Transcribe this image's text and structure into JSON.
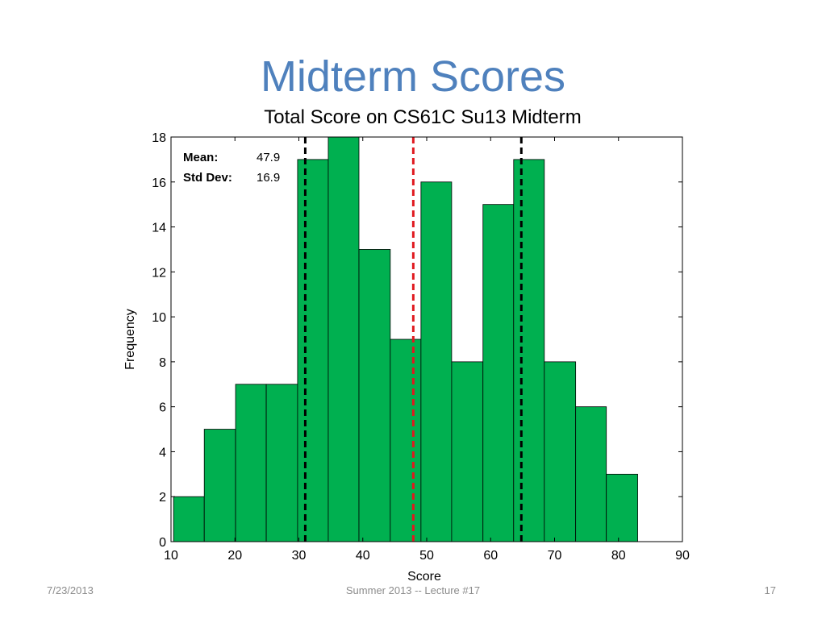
{
  "slide": {
    "title": "Midterm Scores",
    "footer_date": "7/23/2013",
    "footer_center": "Summer 2013 -- Lecture #17",
    "footer_page": "17"
  },
  "colors": {
    "title": "#4f81bd",
    "bar_fill": "#00b050",
    "bar_edge": "#000000",
    "mean_line": "#e0191f",
    "sd_lines": "#000000"
  },
  "chart_data": {
    "type": "bar",
    "title": "Total Score on CS61C Su13 Midterm",
    "xlabel": "Score",
    "ylabel": "Frequency",
    "xlim": [
      10,
      90
    ],
    "ylim": [
      0,
      18
    ],
    "xticks": [
      10,
      20,
      30,
      40,
      50,
      60,
      70,
      80,
      90
    ],
    "yticks": [
      0,
      2,
      4,
      6,
      8,
      10,
      12,
      14,
      16,
      18
    ],
    "bin_edges": [
      10.4,
      15.2,
      20.1,
      24.9,
      29.8,
      34.6,
      39.4,
      44.3,
      49.1,
      53.9,
      58.8,
      63.6,
      68.4,
      73.3,
      78.1,
      83.0
    ],
    "values": [
      2,
      5,
      7,
      7,
      17,
      18,
      13,
      9,
      16,
      8,
      15,
      17,
      8,
      6,
      3
    ],
    "stats": {
      "mean_label": "Mean:",
      "mean_value": "47.9",
      "std_label": "Std Dev:",
      "std_value": "16.9"
    },
    "reference_lines": {
      "mean": 47.9,
      "minus_one_sd": 31.0,
      "plus_one_sd": 64.8
    },
    "grid": false
  }
}
